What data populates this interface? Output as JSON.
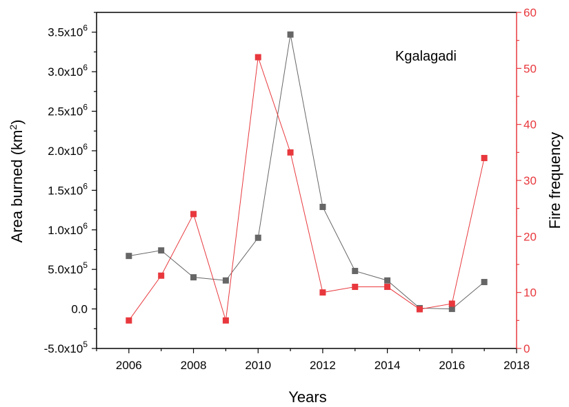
{
  "chart_data": {
    "type": "line",
    "annotation": "Kgalagadi",
    "xlabel": "Years",
    "ylabel_left": "Area burned (km²)",
    "ylabel_right": "Fire frequency",
    "xlim": [
      2005,
      2018
    ],
    "x_ticks": [
      2006,
      2008,
      2010,
      2012,
      2014,
      2016,
      2018
    ],
    "ylim_left": [
      -500000,
      3750000
    ],
    "ylim_right": [
      0,
      60
    ],
    "y_ticks_left": [
      {
        "mant": "-5.0x10",
        "exp": "5",
        "value": -500000
      },
      {
        "mant": "0.0",
        "exp": "",
        "value": 0
      },
      {
        "mant": "5.0x10",
        "exp": "5",
        "value": 500000
      },
      {
        "mant": "1.0x10",
        "exp": "6",
        "value": 1000000
      },
      {
        "mant": "1.5x10",
        "exp": "6",
        "value": 1500000
      },
      {
        "mant": "2.0x10",
        "exp": "6",
        "value": 2000000
      },
      {
        "mant": "2.5x10",
        "exp": "6",
        "value": 2500000
      },
      {
        "mant": "3.0x10",
        "exp": "6",
        "value": 3000000
      },
      {
        "mant": "3.5x10",
        "exp": "6",
        "value": 3500000
      }
    ],
    "y_ticks_right": [
      0,
      10,
      20,
      30,
      40,
      50,
      60
    ],
    "grid": false,
    "colors": {
      "area": "#666666",
      "fire": "#e8383d",
      "axis": "#000000"
    },
    "series": [
      {
        "axis": "left",
        "x": [
          2006,
          2007,
          2008,
          2009,
          2010,
          2011,
          2012,
          2013,
          2014,
          2015,
          2016,
          2017
        ],
        "values": [
          670000,
          740000,
          400000,
          360000,
          900000,
          3470000,
          1290000,
          480000,
          360000,
          10000,
          0,
          340000
        ]
      },
      {
        "axis": "right",
        "x": [
          2006,
          2007,
          2008,
          2009,
          2010,
          2011,
          2012,
          2013,
          2014,
          2015,
          2016,
          2017
        ],
        "values": [
          5,
          13,
          24,
          5,
          52,
          35,
          10,
          11,
          11,
          7,
          8,
          34
        ]
      }
    ]
  }
}
